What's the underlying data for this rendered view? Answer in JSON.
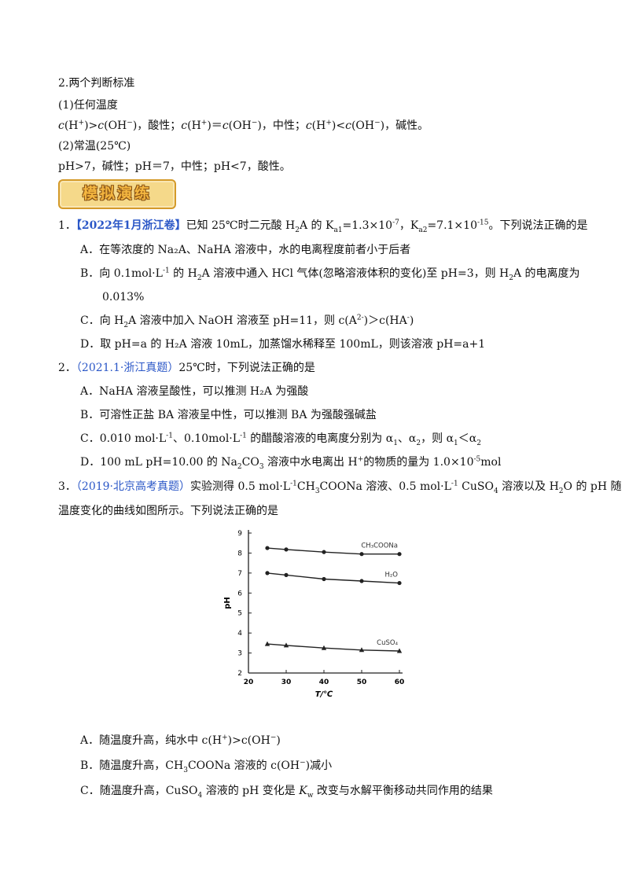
{
  "section": {
    "title": "2.两个判断标准",
    "any_temp_label": "(1)任何温度",
    "room_temp_label": "(2)常温(25℃)",
    "ph_rule": "pH>7，碱性；pH＝7，中性；pH<7，酸性。"
  },
  "banner_text": "模拟演练",
  "q1": {
    "num": "1．",
    "source": "【2022年1月浙江卷】",
    "A": "A．在等浓度的 Na₂A、NaHA 溶液中，水的电离程度前者小于后者",
    "B_cont": "0.013%",
    "D": "D．取 pH=a 的 H₂A 溶液 10mL，加蒸馏水稀释至 100mL，则该溶液 pH=a+1"
  },
  "q2": {
    "num": "2．",
    "source": "（2021.1·浙江真题）",
    "stem": "25℃时，下列说法正确的是",
    "A": "A．NaHA 溶液呈酸性，可以推测 H₂A 为强酸",
    "B": "B．可溶性正盐 BA 溶液呈中性，可以推测 BA 为强酸强碱盐"
  },
  "q3": {
    "num": "3．",
    "source": "（2019·北京高考真题）",
    "stem_line2": "温度变化的曲线如图所示。下列说法正确的是"
  },
  "chart_data": {
    "type": "line",
    "xlabel": "T/℃",
    "ylabel": "pH",
    "xlim": [
      20,
      60
    ],
    "ylim": [
      2,
      9
    ],
    "xticks": [
      20,
      30,
      40,
      50,
      60
    ],
    "yticks": [
      2,
      3,
      4,
      5,
      6,
      7,
      8,
      9
    ],
    "series": [
      {
        "name": "CH₃COONa",
        "x": [
          25,
          30,
          40,
          50,
          60
        ],
        "y": [
          8.25,
          8.18,
          8.05,
          7.95,
          7.95
        ],
        "marker": "circle"
      },
      {
        "name": "H₂O",
        "x": [
          25,
          30,
          40,
          50,
          60
        ],
        "y": [
          7.0,
          6.9,
          6.7,
          6.6,
          6.5
        ],
        "marker": "circle"
      },
      {
        "name": "CuSO₄",
        "x": [
          25,
          30,
          40,
          50,
          60
        ],
        "y": [
          3.45,
          3.38,
          3.25,
          3.15,
          3.1
        ],
        "marker": "triangle"
      }
    ]
  },
  "colors": {
    "source_blue": "#2b57c7",
    "banner_fill": "#f5d98a",
    "banner_border": "#d49a2a"
  }
}
